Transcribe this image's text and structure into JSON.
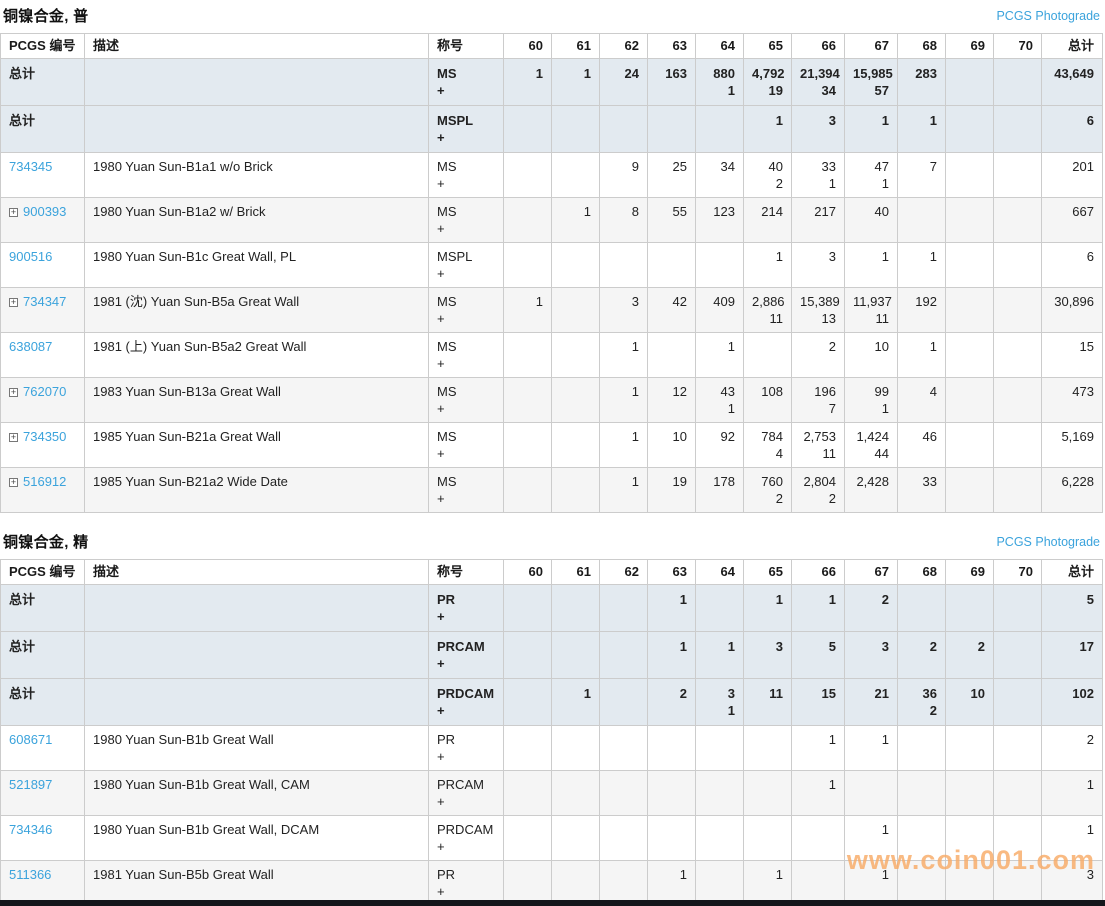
{
  "colors": {
    "link": "#3ba3dc",
    "total_row_bg": "#e3eaf0",
    "zebra": "#f5f5f5",
    "border": "#cccccc",
    "watermark": "#f8ab67",
    "bottom_bar": "#14161b"
  },
  "photograde_label": "PCGS Photograde",
  "watermark": "www.coin001.com",
  "plus_sign": "+",
  "total_label": "总计",
  "columns": {
    "pcgs": "PCGS 编号",
    "desc": "描述",
    "desig": "称号",
    "grades": [
      "60",
      "61",
      "62",
      "63",
      "64",
      "65",
      "66",
      "67",
      "68",
      "69",
      "70"
    ],
    "total": "总计"
  },
  "tables": [
    {
      "title": "铜镍合金, 普",
      "rows": [
        {
          "type": "total",
          "desig": "MS",
          "grades": {
            "60": {
              "m": "1"
            },
            "61": {
              "m": "1"
            },
            "62": {
              "m": "24"
            },
            "63": {
              "m": "163"
            },
            "64": {
              "m": "880",
              "p": "1"
            },
            "65": {
              "m": "4,792",
              "p": "19"
            },
            "66": {
              "m": "21,394",
              "p": "34"
            },
            "67": {
              "m": "15,985",
              "p": "57"
            },
            "68": {
              "m": "283"
            }
          },
          "total": "43,649"
        },
        {
          "type": "total",
          "desig": "MSPL",
          "grades": {
            "65": {
              "m": "1"
            },
            "66": {
              "m": "3"
            },
            "67": {
              "m": "1"
            },
            "68": {
              "m": "1"
            }
          },
          "total": "6"
        },
        {
          "type": "item",
          "id": "734345",
          "expand": false,
          "desc": "1980 Yuan Sun-B1a1 w/o Brick",
          "desig": "MS",
          "grades": {
            "62": {
              "m": "9"
            },
            "63": {
              "m": "25"
            },
            "64": {
              "m": "34"
            },
            "65": {
              "m": "40",
              "p": "2"
            },
            "66": {
              "m": "33",
              "p": "1"
            },
            "67": {
              "m": "47",
              "p": "1"
            },
            "68": {
              "m": "7"
            }
          },
          "total": "201"
        },
        {
          "type": "item",
          "id": "900393",
          "expand": true,
          "desc": "1980 Yuan Sun-B1a2 w/ Brick",
          "desig": "MS",
          "grades": {
            "61": {
              "m": "1"
            },
            "62": {
              "m": "8"
            },
            "63": {
              "m": "55"
            },
            "64": {
              "m": "123"
            },
            "65": {
              "m": "214"
            },
            "66": {
              "m": "217"
            },
            "67": {
              "m": "40"
            }
          },
          "total": "667"
        },
        {
          "type": "item",
          "id": "900516",
          "expand": false,
          "desc": "1980 Yuan Sun-B1c Great Wall, PL",
          "desig": "MSPL",
          "grades": {
            "65": {
              "m": "1"
            },
            "66": {
              "m": "3"
            },
            "67": {
              "m": "1"
            },
            "68": {
              "m": "1"
            }
          },
          "total": "6"
        },
        {
          "type": "item",
          "id": "734347",
          "expand": true,
          "desc": "1981 (沈) Yuan Sun-B5a Great Wall",
          "desig": "MS",
          "grades": {
            "60": {
              "m": "1"
            },
            "62": {
              "m": "3"
            },
            "63": {
              "m": "42"
            },
            "64": {
              "m": "409"
            },
            "65": {
              "m": "2,886",
              "p": "11"
            },
            "66": {
              "m": "15,389",
              "p": "13"
            },
            "67": {
              "m": "11,937",
              "p": "11"
            },
            "68": {
              "m": "192"
            }
          },
          "total": "30,896"
        },
        {
          "type": "item",
          "id": "638087",
          "expand": false,
          "desc": "1981 (上) Yuan Sun-B5a2 Great Wall",
          "desig": "MS",
          "grades": {
            "62": {
              "m": "1"
            },
            "64": {
              "m": "1"
            },
            "66": {
              "m": "2"
            },
            "67": {
              "m": "10"
            },
            "68": {
              "m": "1"
            }
          },
          "total": "15"
        },
        {
          "type": "item",
          "id": "762070",
          "expand": true,
          "desc": "1983 Yuan Sun-B13a Great Wall",
          "desig": "MS",
          "grades": {
            "62": {
              "m": "1"
            },
            "63": {
              "m": "12"
            },
            "64": {
              "m": "43",
              "p": "1"
            },
            "65": {
              "m": "108"
            },
            "66": {
              "m": "196",
              "p": "7"
            },
            "67": {
              "m": "99",
              "p": "1"
            },
            "68": {
              "m": "4"
            }
          },
          "total": "473"
        },
        {
          "type": "item",
          "id": "734350",
          "expand": true,
          "desc": "1985 Yuan Sun-B21a Great Wall",
          "desig": "MS",
          "grades": {
            "62": {
              "m": "1"
            },
            "63": {
              "m": "10"
            },
            "64": {
              "m": "92"
            },
            "65": {
              "m": "784",
              "p": "4"
            },
            "66": {
              "m": "2,753",
              "p": "11"
            },
            "67": {
              "m": "1,424",
              "p": "44"
            },
            "68": {
              "m": "46"
            }
          },
          "total": "5,169"
        },
        {
          "type": "item",
          "id": "516912",
          "expand": true,
          "desc": "1985 Yuan Sun-B21a2 Wide Date",
          "desig": "MS",
          "grades": {
            "62": {
              "m": "1"
            },
            "63": {
              "m": "19"
            },
            "64": {
              "m": "178"
            },
            "65": {
              "m": "760",
              "p": "2"
            },
            "66": {
              "m": "2,804",
              "p": "2"
            },
            "67": {
              "m": "2,428"
            },
            "68": {
              "m": "33"
            }
          },
          "total": "6,228"
        }
      ]
    },
    {
      "title": "铜镍合金, 精",
      "rows": [
        {
          "type": "total",
          "desig": "PR",
          "grades": {
            "63": {
              "m": "1"
            },
            "65": {
              "m": "1"
            },
            "66": {
              "m": "1"
            },
            "67": {
              "m": "2"
            }
          },
          "total": "5"
        },
        {
          "type": "total",
          "desig": "PRCAM",
          "grades": {
            "63": {
              "m": "1"
            },
            "64": {
              "m": "1"
            },
            "65": {
              "m": "3"
            },
            "66": {
              "m": "5"
            },
            "67": {
              "m": "3"
            },
            "68": {
              "m": "2"
            },
            "69": {
              "m": "2"
            }
          },
          "total": "17"
        },
        {
          "type": "total",
          "desig": "PRDCAM",
          "grades": {
            "61": {
              "m": "1"
            },
            "63": {
              "m": "2"
            },
            "64": {
              "m": "3",
              "p": "1"
            },
            "65": {
              "m": "11"
            },
            "66": {
              "m": "15"
            },
            "67": {
              "m": "21"
            },
            "68": {
              "m": "36",
              "p": "2"
            },
            "69": {
              "m": "10"
            }
          },
          "total": "102"
        },
        {
          "type": "item",
          "id": "608671",
          "expand": false,
          "desc": "1980 Yuan Sun-B1b Great Wall",
          "desig": "PR",
          "grades": {
            "66": {
              "m": "1"
            },
            "67": {
              "m": "1"
            }
          },
          "total": "2"
        },
        {
          "type": "item",
          "id": "521897",
          "expand": false,
          "desc": "1980 Yuan Sun-B1b Great Wall, CAM",
          "desig": "PRCAM",
          "grades": {
            "66": {
              "m": "1"
            }
          },
          "total": "1"
        },
        {
          "type": "item",
          "id": "734346",
          "expand": false,
          "desc": "1980 Yuan Sun-B1b Great Wall, DCAM",
          "desig": "PRDCAM",
          "grades": {
            "67": {
              "m": "1"
            }
          },
          "total": "1"
        },
        {
          "type": "item",
          "id": "511366",
          "expand": false,
          "desc": "1981 Yuan Sun-B5b Great Wall",
          "desig": "PR",
          "grades": {
            "63": {
              "m": "1"
            },
            "65": {
              "m": "1"
            },
            "67": {
              "m": "1"
            }
          },
          "total": "3"
        }
      ]
    }
  ]
}
